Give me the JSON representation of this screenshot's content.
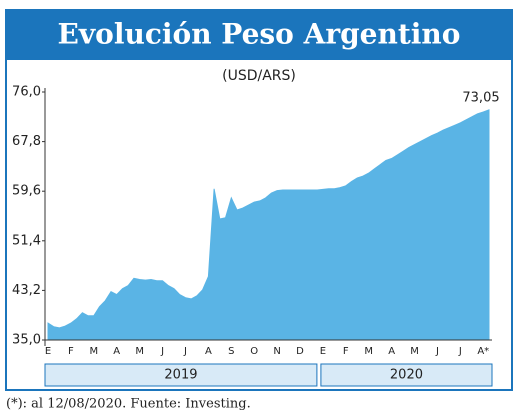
{
  "chart_data": {
    "type": "area",
    "title": "Evolución Peso Argentino",
    "subtitle": "(USD/ARS)",
    "categories": [
      "E",
      null,
      null,
      null,
      "F",
      null,
      null,
      null,
      "M",
      null,
      null,
      null,
      "A",
      null,
      null,
      null,
      "M",
      null,
      null,
      null,
      "J",
      null,
      null,
      null,
      "J",
      null,
      null,
      null,
      "A",
      null,
      null,
      null,
      "S",
      null,
      null,
      null,
      "O",
      null,
      null,
      null,
      "N",
      null,
      null,
      null,
      "D",
      null,
      null,
      null,
      "E",
      null,
      null,
      null,
      "F",
      null,
      null,
      null,
      "M",
      null,
      null,
      null,
      "A",
      null,
      null,
      null,
      "M",
      null,
      null,
      null,
      "J",
      null,
      null,
      null,
      "J",
      null,
      null,
      null,
      "A*",
      null
    ],
    "values": [
      37.8,
      37.2,
      37.0,
      37.3,
      37.8,
      38.5,
      39.5,
      39.0,
      39.0,
      40.5,
      41.5,
      43.0,
      42.5,
      43.5,
      44.0,
      45.2,
      45.0,
      44.9,
      45.0,
      44.8,
      44.8,
      44.0,
      43.5,
      42.5,
      42.0,
      41.8,
      42.3,
      43.3,
      45.5,
      60.0,
      55.0,
      55.2,
      58.5,
      56.5,
      56.8,
      57.3,
      57.8,
      58.0,
      58.5,
      59.3,
      59.7,
      59.8,
      59.8,
      59.8,
      59.8,
      59.8,
      59.8,
      59.8,
      59.9,
      60.0,
      60.0,
      60.2,
      60.5,
      61.2,
      61.8,
      62.1,
      62.6,
      63.3,
      64.0,
      64.7,
      65.0,
      65.6,
      66.2,
      66.8,
      67.3,
      67.8,
      68.3,
      68.8,
      69.2,
      69.7,
      70.1,
      70.5,
      70.9,
      71.4,
      71.9,
      72.4,
      72.7,
      73.05
    ],
    "value_labels": [
      null,
      null,
      null,
      null,
      null,
      null,
      null,
      null,
      null,
      null,
      null,
      null,
      null,
      null,
      null,
      null,
      null,
      null,
      null,
      null,
      null,
      null,
      null,
      null,
      null,
      null,
      null,
      null,
      null,
      null,
      null,
      null,
      null,
      null,
      null,
      null,
      null,
      null,
      null,
      null,
      null,
      null,
      null,
      null,
      null,
      null,
      null,
      null,
      null,
      null,
      null,
      null,
      null,
      null,
      null,
      null,
      null,
      null,
      null,
      null,
      null,
      null,
      null,
      null,
      null,
      null,
      null,
      null,
      null,
      null,
      null,
      null,
      null,
      null,
      null,
      null,
      null,
      "73,05"
    ],
    "color": "#5ab4e5",
    "ylim": [
      35.0,
      76.0
    ],
    "yticks": [
      {
        "value": 35.0,
        "label": "35,0"
      },
      {
        "value": 43.2,
        "label": "43,2"
      },
      {
        "value": 51.4,
        "label": "51,4"
      },
      {
        "value": 59.6,
        "label": "59,6"
      },
      {
        "value": 67.8,
        "label": "67,8"
      },
      {
        "value": 76.0,
        "label": "76,0"
      }
    ],
    "x_groups": [
      "2019",
      "2020"
    ],
    "grid": false,
    "footnote": "(*): al 12/08/2020. Fuente: Investing."
  }
}
